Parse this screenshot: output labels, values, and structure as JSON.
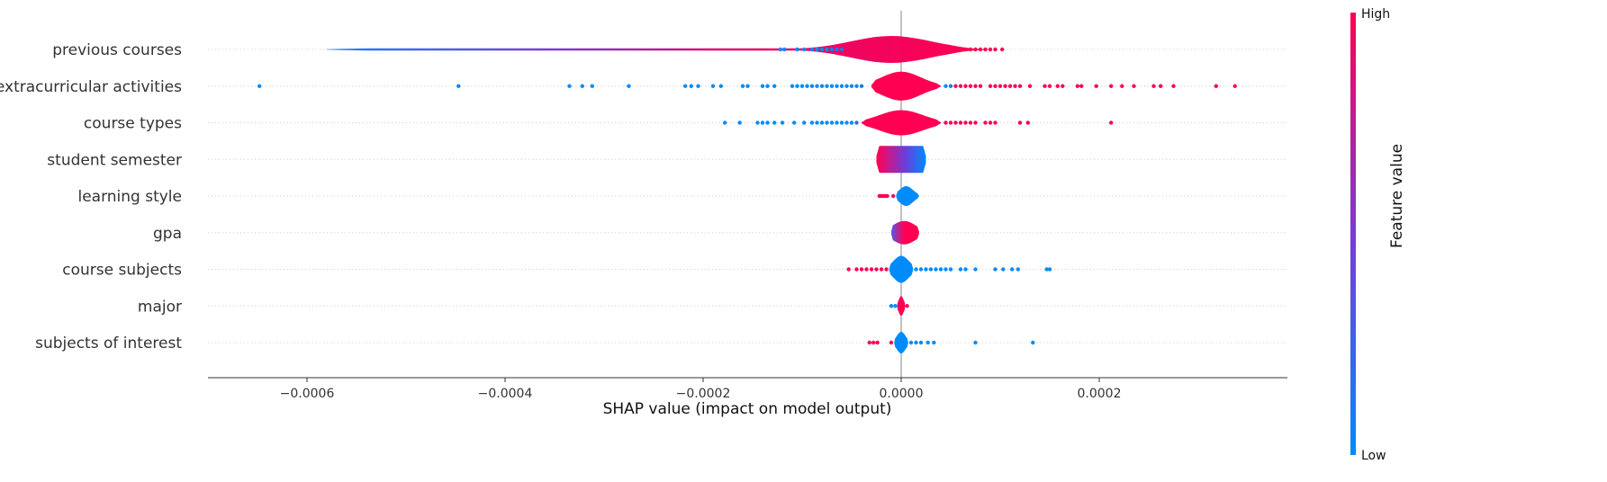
{
  "chart_data": {
    "type": "scatter",
    "variant": "shap-violin-summary",
    "xlabel": "SHAP value (impact on model output)",
    "xlim": [
      -0.0007,
      0.00039
    ],
    "x_ticks": [
      -0.0006,
      -0.0004,
      -0.0002,
      0.0,
      0.0002
    ],
    "x_tick_labels": [
      "−0.0006",
      "−0.0004",
      "−0.0002",
      "0.0000",
      "0.0002"
    ],
    "zero_line": 0.0,
    "colorbar": {
      "label": "Feature value",
      "high_label": "High",
      "low_label": "Low",
      "high_color": "#ff0052",
      "low_color": "#008bfb"
    },
    "features": [
      {
        "name": "previous courses",
        "violin": {
          "min": -0.00058,
          "max": 9e-05,
          "peak_at": -1e-05,
          "half_height": 15,
          "spread": 4e-05,
          "color_mode": "low-left"
        },
        "points": [
          {
            "x": -0.000122,
            "v": 0
          },
          {
            "x": -0.000118,
            "v": 0
          },
          {
            "x": -0.000105,
            "v": 0
          },
          {
            "x": -9.8e-05,
            "v": 0
          },
          {
            "x": -9e-05,
            "v": 0
          },
          {
            "x": -8.5e-05,
            "v": 0
          },
          {
            "x": -8e-05,
            "v": 0
          },
          {
            "x": -7.5e-05,
            "v": 0
          },
          {
            "x": -7e-05,
            "v": 0.1
          },
          {
            "x": -6.5e-05,
            "v": 0.1
          },
          {
            "x": -6e-05,
            "v": 0.2
          },
          {
            "x": 6.5e-05,
            "v": 1
          },
          {
            "x": 7e-05,
            "v": 1
          },
          {
            "x": 7.5e-05,
            "v": 1
          },
          {
            "x": 8e-05,
            "v": 1
          },
          {
            "x": 8.5e-05,
            "v": 1
          },
          {
            "x": 9e-05,
            "v": 1
          },
          {
            "x": 9.5e-05,
            "v": 1
          },
          {
            "x": 0.000102,
            "v": 1
          }
        ]
      },
      {
        "name": "extracurricular activities",
        "violin": {
          "min": -3e-05,
          "max": 4e-05,
          "peak_at": 0.0,
          "half_height": 16,
          "spread": 2e-05,
          "color_mode": "high"
        },
        "points": [
          {
            "x": -0.000648,
            "v": 0
          },
          {
            "x": -0.000447,
            "v": 0
          },
          {
            "x": -0.000335,
            "v": 0
          },
          {
            "x": -0.000322,
            "v": 0
          },
          {
            "x": -0.000312,
            "v": 0
          },
          {
            "x": -0.000275,
            "v": 0
          },
          {
            "x": -0.000218,
            "v": 0
          },
          {
            "x": -0.000212,
            "v": 0
          },
          {
            "x": -0.000205,
            "v": 0
          },
          {
            "x": -0.00019,
            "v": 0
          },
          {
            "x": -0.000182,
            "v": 0
          },
          {
            "x": -0.00016,
            "v": 0
          },
          {
            "x": -0.000155,
            "v": 0
          },
          {
            "x": -0.00014,
            "v": 0
          },
          {
            "x": -0.000135,
            "v": 0
          },
          {
            "x": -0.000128,
            "v": 0
          },
          {
            "x": -0.00011,
            "v": 0
          },
          {
            "x": -0.000105,
            "v": 0
          },
          {
            "x": -0.0001,
            "v": 0
          },
          {
            "x": -9.5e-05,
            "v": 0
          },
          {
            "x": -9e-05,
            "v": 0
          },
          {
            "x": -8.5e-05,
            "v": 0
          },
          {
            "x": -8e-05,
            "v": 0
          },
          {
            "x": -7.5e-05,
            "v": 0
          },
          {
            "x": -7e-05,
            "v": 0
          },
          {
            "x": -6.5e-05,
            "v": 0
          },
          {
            "x": -6e-05,
            "v": 0
          },
          {
            "x": -5.5e-05,
            "v": 0
          },
          {
            "x": -5e-05,
            "v": 0
          },
          {
            "x": -4.5e-05,
            "v": 0
          },
          {
            "x": -4e-05,
            "v": 0.1
          },
          {
            "x": 4.5e-05,
            "v": 0
          },
          {
            "x": 5e-05,
            "v": 0.1
          },
          {
            "x": 5.5e-05,
            "v": 1
          },
          {
            "x": 6e-05,
            "v": 1
          },
          {
            "x": 6.5e-05,
            "v": 1
          },
          {
            "x": 7e-05,
            "v": 1
          },
          {
            "x": 7.5e-05,
            "v": 1
          },
          {
            "x": 8e-05,
            "v": 1
          },
          {
            "x": 9e-05,
            "v": 1
          },
          {
            "x": 9.5e-05,
            "v": 1
          },
          {
            "x": 0.0001,
            "v": 1
          },
          {
            "x": 0.000105,
            "v": 1
          },
          {
            "x": 0.00011,
            "v": 1
          },
          {
            "x": 0.000115,
            "v": 1
          },
          {
            "x": 0.00012,
            "v": 1
          },
          {
            "x": 0.00013,
            "v": 1
          },
          {
            "x": 0.000145,
            "v": 1
          },
          {
            "x": 0.00015,
            "v": 1
          },
          {
            "x": 0.000158,
            "v": 1
          },
          {
            "x": 0.000163,
            "v": 1
          },
          {
            "x": 0.000178,
            "v": 1
          },
          {
            "x": 0.000182,
            "v": 1
          },
          {
            "x": 0.000197,
            "v": 1
          },
          {
            "x": 0.000212,
            "v": 1
          },
          {
            "x": 0.000223,
            "v": 1
          },
          {
            "x": 0.000235,
            "v": 1
          },
          {
            "x": 0.000255,
            "v": 1
          },
          {
            "x": 0.000262,
            "v": 1
          },
          {
            "x": 0.000275,
            "v": 1
          },
          {
            "x": 0.000318,
            "v": 1
          },
          {
            "x": 0.000337,
            "v": 1
          }
        ]
      },
      {
        "name": "course types",
        "violin": {
          "min": -4e-05,
          "max": 4e-05,
          "peak_at": 0.0,
          "half_height": 14,
          "spread": 2.2e-05,
          "color_mode": "high"
        },
        "points": [
          {
            "x": -0.000178,
            "v": 0
          },
          {
            "x": -0.000163,
            "v": 0
          },
          {
            "x": -0.000145,
            "v": 0
          },
          {
            "x": -0.00014,
            "v": 0
          },
          {
            "x": -0.000135,
            "v": 0
          },
          {
            "x": -0.000128,
            "v": 0
          },
          {
            "x": -0.00012,
            "v": 0
          },
          {
            "x": -0.000108,
            "v": 0
          },
          {
            "x": -9.8e-05,
            "v": 0
          },
          {
            "x": -9e-05,
            "v": 0
          },
          {
            "x": -8.5e-05,
            "v": 0
          },
          {
            "x": -8e-05,
            "v": 0
          },
          {
            "x": -7.5e-05,
            "v": 0
          },
          {
            "x": -7e-05,
            "v": 0
          },
          {
            "x": -6.5e-05,
            "v": 0
          },
          {
            "x": -6e-05,
            "v": 0
          },
          {
            "x": -5.5e-05,
            "v": 0
          },
          {
            "x": -5e-05,
            "v": 0
          },
          {
            "x": -4.5e-05,
            "v": 0.2
          },
          {
            "x": 4.5e-05,
            "v": 1
          },
          {
            "x": 5e-05,
            "v": 1
          },
          {
            "x": 5.5e-05,
            "v": 1
          },
          {
            "x": 6e-05,
            "v": 1
          },
          {
            "x": 6.5e-05,
            "v": 1
          },
          {
            "x": 7e-05,
            "v": 1
          },
          {
            "x": 7.5e-05,
            "v": 1
          },
          {
            "x": 8.5e-05,
            "v": 1
          },
          {
            "x": 9e-05,
            "v": 1
          },
          {
            "x": 9.5e-05,
            "v": 1
          },
          {
            "x": 0.00012,
            "v": 1
          },
          {
            "x": 0.000128,
            "v": 1
          },
          {
            "x": 0.000212,
            "v": 1
          }
        ]
      },
      {
        "name": "student semester",
        "violin": {
          "min": -2.5e-05,
          "max": 2.5e-05,
          "peak_at": 0.0,
          "half_height": 15,
          "spread": 0.0,
          "color_mode": "high-left-flat"
        },
        "points": []
      },
      {
        "name": "learning style",
        "violin": {
          "min": -5e-06,
          "max": 1.8e-05,
          "peak_at": 5e-06,
          "half_height": 11,
          "spread": 7e-06,
          "color_mode": "low"
        },
        "points": [
          {
            "x": -2.2e-05,
            "v": 1
          },
          {
            "x": -2e-05,
            "v": 1
          },
          {
            "x": -1.8e-05,
            "v": 1
          },
          {
            "x": -1.6e-05,
            "v": 1
          },
          {
            "x": -1.4e-05,
            "v": 1
          },
          {
            "x": -8e-06,
            "v": 0.9
          }
        ]
      },
      {
        "name": "gpa",
        "violin": {
          "min": -1e-05,
          "max": 1.8e-05,
          "peak_at": 3e-06,
          "half_height": 13,
          "spread": 1.2e-05,
          "color_mode": "high-with-low-left"
        },
        "points": []
      },
      {
        "name": "course subjects",
        "violin": {
          "min": -1.2e-05,
          "max": 1.2e-05,
          "peak_at": 0.0,
          "half_height": 15,
          "spread": 8e-06,
          "color_mode": "low"
        },
        "points": [
          {
            "x": -5.3e-05,
            "v": 1
          },
          {
            "x": -4.5e-05,
            "v": 1
          },
          {
            "x": -4e-05,
            "v": 1
          },
          {
            "x": -3.5e-05,
            "v": 1
          },
          {
            "x": -3e-05,
            "v": 1
          },
          {
            "x": -2.5e-05,
            "v": 1
          },
          {
            "x": -2e-05,
            "v": 1
          },
          {
            "x": -1.5e-05,
            "v": 0.9
          },
          {
            "x": 1.5e-05,
            "v": 0
          },
          {
            "x": 2e-05,
            "v": 0
          },
          {
            "x": 2.5e-05,
            "v": 0
          },
          {
            "x": 3e-05,
            "v": 0
          },
          {
            "x": 3.5e-05,
            "v": 0
          },
          {
            "x": 4e-05,
            "v": 0
          },
          {
            "x": 4.5e-05,
            "v": 0
          },
          {
            "x": 5e-05,
            "v": 0
          },
          {
            "x": 6e-05,
            "v": 0
          },
          {
            "x": 6.5e-05,
            "v": 0
          },
          {
            "x": 7.5e-05,
            "v": 0
          },
          {
            "x": 9.5e-05,
            "v": 0
          },
          {
            "x": 0.000103,
            "v": 0
          },
          {
            "x": 0.000112,
            "v": 0
          },
          {
            "x": 0.000118,
            "v": 0
          },
          {
            "x": 0.000147,
            "v": 0
          },
          {
            "x": 0.00015,
            "v": 0
          }
        ]
      },
      {
        "name": "major",
        "violin": {
          "min": -4e-06,
          "max": 4e-06,
          "peak_at": 0.0,
          "half_height": 11,
          "spread": 2.5e-06,
          "color_mode": "high"
        },
        "points": [
          {
            "x": -1e-05,
            "v": 0
          },
          {
            "x": -6e-06,
            "v": 0
          },
          {
            "x": 6e-06,
            "v": 1
          }
        ]
      },
      {
        "name": "subjects of interest",
        "violin": {
          "min": -7e-06,
          "max": 7e-06,
          "peak_at": 0.0,
          "half_height": 12,
          "spread": 4.5e-06,
          "color_mode": "low"
        },
        "points": [
          {
            "x": -3.2e-05,
            "v": 1
          },
          {
            "x": -2.8e-05,
            "v": 1
          },
          {
            "x": -2.4e-05,
            "v": 1
          },
          {
            "x": -1e-05,
            "v": 1
          },
          {
            "x": 1e-05,
            "v": 0
          },
          {
            "x": 1.5e-05,
            "v": 0
          },
          {
            "x": 2e-05,
            "v": 0
          },
          {
            "x": 2.7e-05,
            "v": 0
          },
          {
            "x": 3.3e-05,
            "v": 0
          },
          {
            "x": 7.5e-05,
            "v": 0
          },
          {
            "x": 0.000133,
            "v": 0
          }
        ]
      }
    ]
  }
}
